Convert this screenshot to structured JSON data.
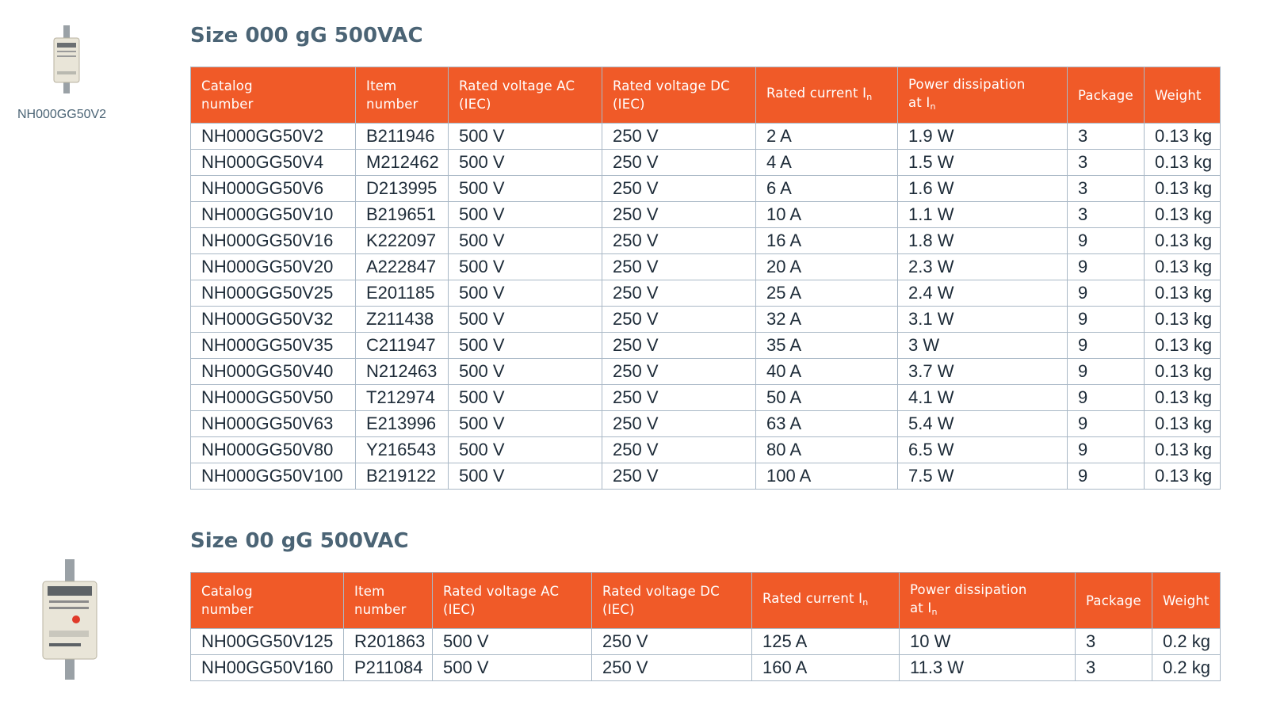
{
  "sections": [
    {
      "image_caption": "NH000GG50V2",
      "title": "Size 000 gG 500VAC",
      "table": {
        "columns": [
          {
            "lines": [
              "Catalog",
              "number"
            ]
          },
          {
            "lines": [
              "Item",
              "number"
            ]
          },
          {
            "lines": [
              "Rated voltage AC",
              "(IEC)"
            ]
          },
          {
            "lines": [
              "Rated voltage DC",
              "(IEC)"
            ]
          },
          {
            "lines": [
              "Rated current I"
            ],
            "sub": "n"
          },
          {
            "lines": [
              "Power dissipation",
              "at I"
            ],
            "sub": "n"
          },
          {
            "lines": [
              "Package"
            ]
          },
          {
            "lines": [
              "Weight"
            ]
          }
        ],
        "rows": [
          [
            "NH000GG50V2",
            "B211946",
            "500 V",
            "250 V",
            "2 A",
            "1.9 W",
            "3",
            "0.13 kg"
          ],
          [
            "NH000GG50V4",
            "M212462",
            "500 V",
            "250 V",
            "4 A",
            "1.5 W",
            "3",
            "0.13 kg"
          ],
          [
            "NH000GG50V6",
            "D213995",
            "500 V",
            "250 V",
            "6 A",
            "1.6 W",
            "3",
            "0.13 kg"
          ],
          [
            "NH000GG50V10",
            "B219651",
            "500 V",
            "250 V",
            "10 A",
            "1.1 W",
            "3",
            "0.13 kg"
          ],
          [
            "NH000GG50V16",
            "K222097",
            "500 V",
            "250 V",
            "16 A",
            "1.8 W",
            "9",
            "0.13 kg"
          ],
          [
            "NH000GG50V20",
            "A222847",
            "500 V",
            "250 V",
            "20 A",
            "2.3 W",
            "9",
            "0.13 kg"
          ],
          [
            "NH000GG50V25",
            "E201185",
            "500 V",
            "250 V",
            "25 A",
            "2.4 W",
            "9",
            "0.13 kg"
          ],
          [
            "NH000GG50V32",
            "Z211438",
            "500 V",
            "250 V",
            "32 A",
            "3.1 W",
            "9",
            "0.13 kg"
          ],
          [
            "NH000GG50V35",
            "C211947",
            "500 V",
            "250 V",
            "35 A",
            "3 W",
            "9",
            "0.13 kg"
          ],
          [
            "NH000GG50V40",
            "N212463",
            "500 V",
            "250 V",
            "40 A",
            "3.7 W",
            "9",
            "0.13 kg"
          ],
          [
            "NH000GG50V50",
            "T212974",
            "500 V",
            "250 V",
            "50 A",
            "4.1 W",
            "9",
            "0.13 kg"
          ],
          [
            "NH000GG50V63",
            "E213996",
            "500 V",
            "250 V",
            "63 A",
            "5.4 W",
            "9",
            "0.13 kg"
          ],
          [
            "NH000GG50V80",
            "Y216543",
            "500 V",
            "250 V",
            "80 A",
            "6.5 W",
            "9",
            "0.13 kg"
          ],
          [
            "NH000GG50V100",
            "B219122",
            "500 V",
            "250 V",
            "100 A",
            "7.5 W",
            "9",
            "0.13 kg"
          ]
        ]
      }
    },
    {
      "title": "Size 00 gG 500VAC",
      "table": {
        "columns": [
          {
            "lines": [
              "Catalog",
              "number"
            ]
          },
          {
            "lines": [
              "Item",
              "number"
            ]
          },
          {
            "lines": [
              "Rated voltage AC",
              "(IEC)"
            ]
          },
          {
            "lines": [
              "Rated voltage DC",
              "(IEC)"
            ]
          },
          {
            "lines": [
              "Rated current I"
            ],
            "sub": "n"
          },
          {
            "lines": [
              "Power dissipation",
              "at I"
            ],
            "sub": "n"
          },
          {
            "lines": [
              "Package"
            ]
          },
          {
            "lines": [
              "Weight"
            ]
          }
        ],
        "rows": [
          [
            "NH00GG50V125",
            "R201863",
            "500 V",
            "250 V",
            "125 A",
            "10 W",
            "3",
            "0.2 kg"
          ],
          [
            "NH00GG50V160",
            "P211084",
            "500 V",
            "250 V",
            "160 A",
            "11.3 W",
            "3",
            "0.2 kg"
          ]
        ]
      }
    }
  ]
}
